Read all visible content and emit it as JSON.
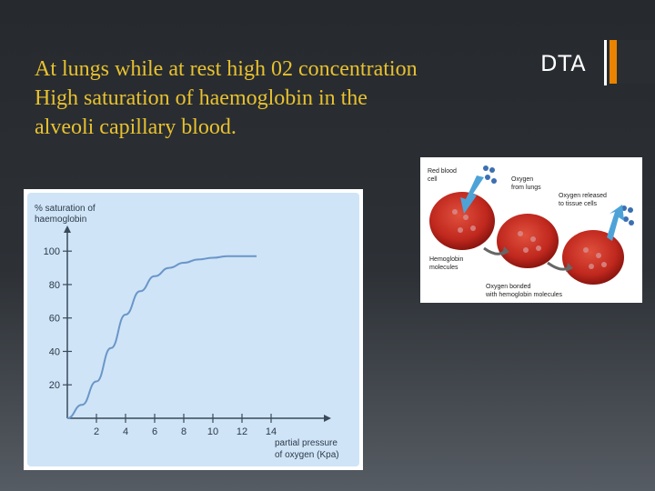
{
  "slide": {
    "body_lines": [
      "At lungs while at rest high 02 concentration",
      "High saturation of haemoglobin in the",
      "alveoli capillary blood."
    ],
    "tag": "DTA",
    "accent_color": "#e98300",
    "text_color": "#e8c12f"
  },
  "chart_data": {
    "type": "line",
    "ylabel_line1": "% saturation of",
    "ylabel_line2": "haemoglobin",
    "xlabel_line1": "partial pressure",
    "xlabel_line2": "of oxygen (Kpa)",
    "x_ticks": [
      2,
      4,
      6,
      8,
      10,
      12,
      14
    ],
    "y_ticks": [
      20,
      40,
      60,
      80,
      100
    ],
    "xlim": [
      0,
      16
    ],
    "ylim": [
      0,
      105
    ],
    "series": [
      {
        "x": [
          0,
          1,
          2,
          3,
          4,
          5,
          6,
          7,
          8,
          9,
          10,
          11,
          12,
          13
        ],
        "y": [
          0,
          8,
          22,
          42,
          62,
          76,
          85,
          90,
          93,
          95,
          96,
          97,
          97,
          97
        ]
      }
    ],
    "line_color": "#6a96c8",
    "background": "#cfe4f7"
  },
  "diagram": {
    "labels": {
      "red_blood_cell_1": "Red blood",
      "red_blood_cell_2": "cell",
      "oxygen_lungs_1": "Oxygen",
      "oxygen_lungs_2": "from lungs",
      "oxygen_released_1": "Oxygen released",
      "oxygen_released_2": "to tissue cells",
      "hemoglobin_1": "Hemoglobin",
      "hemoglobin_2": "molecules",
      "oxygen_bonded_1": "Oxygen bonded",
      "oxygen_bonded_2": "with hemoglobin molecules"
    },
    "cell_color": "#c0281e",
    "arrow_color": "#4da3d8"
  }
}
